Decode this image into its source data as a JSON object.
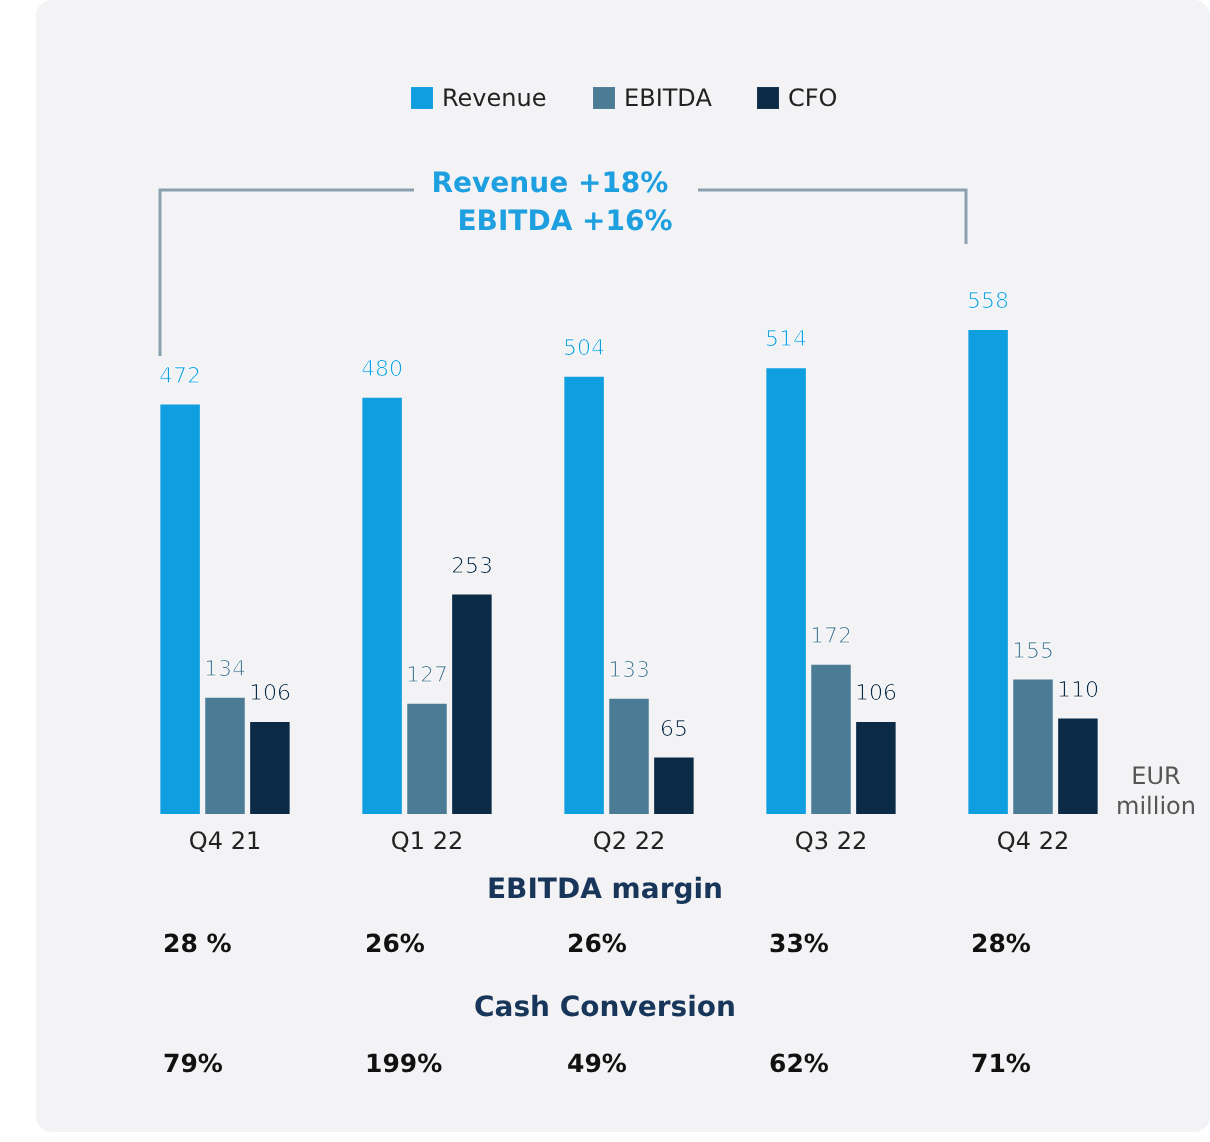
{
  "chart_data": {
    "type": "bar",
    "categories": [
      "Q4 21",
      "Q1 22",
      "Q2 22",
      "Q3 22",
      "Q4 22"
    ],
    "series": [
      {
        "name": "Revenue",
        "color": "#0f9fe0",
        "values": [
          472,
          480,
          504,
          514,
          558
        ]
      },
      {
        "name": "EBITDA",
        "color": "#4b7b95",
        "values": [
          134,
          127,
          133,
          172,
          155
        ]
      },
      {
        "name": "CFO",
        "color": "#0b2a46",
        "values": [
          106,
          253,
          65,
          106,
          110
        ]
      }
    ],
    "data_labels": true,
    "legend": "top",
    "annotations": [
      "Revenue +18%",
      "EBITDA +16%",
      "EUR million",
      "EBITDA margin",
      "Cash Conversion",
      "28 %",
      "26%",
      "26%",
      "33%",
      "28%",
      "79%",
      "199%",
      "49%",
      "62%",
      "71%"
    ]
  }
}
